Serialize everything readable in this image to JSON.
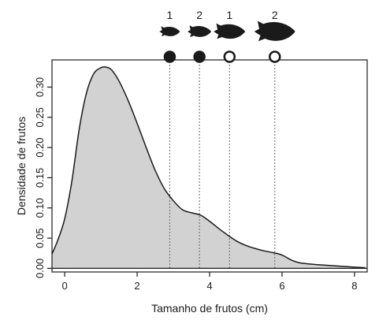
{
  "chart_data": {
    "type": "area",
    "xlabel": "Tamanho de frutos (cm)",
    "ylabel": "Densidade de frutos",
    "xlim": [
      -0.35,
      8.35
    ],
    "ylim": [
      -0.006,
      0.345
    ],
    "x_ticks": [
      0,
      2,
      4,
      6,
      8
    ],
    "x_tick_labels": [
      "0",
      "2",
      "4",
      "6",
      "8"
    ],
    "y_ticks": [
      0.0,
      0.05,
      0.1,
      0.15,
      0.2,
      0.25,
      0.3
    ],
    "y_tick_labels": [
      "0.00",
      "0.05",
      "0.10",
      "0.15",
      "0.20",
      "0.25",
      "0.30"
    ],
    "grid": false,
    "fill_color": "#d2d2d2",
    "line_color": "#1a1a1a",
    "density": {
      "x": [
        -0.35,
        -0.2,
        0.0,
        0.2,
        0.4,
        0.6,
        0.8,
        1.0,
        1.15,
        1.3,
        1.5,
        1.75,
        2.0,
        2.25,
        2.5,
        2.75,
        3.0,
        3.25,
        3.5,
        3.75,
        4.0,
        4.25,
        4.5,
        4.75,
        5.0,
        5.25,
        5.5,
        5.75,
        6.0,
        6.25,
        6.5,
        7.0,
        7.5,
        8.0,
        8.3
      ],
      "y": [
        0.024,
        0.045,
        0.082,
        0.145,
        0.23,
        0.29,
        0.322,
        0.332,
        0.333,
        0.328,
        0.31,
        0.278,
        0.24,
        0.2,
        0.162,
        0.132,
        0.112,
        0.097,
        0.092,
        0.088,
        0.078,
        0.066,
        0.055,
        0.045,
        0.038,
        0.033,
        0.029,
        0.026,
        0.022,
        0.014,
        0.009,
        0.006,
        0.004,
        0.002,
        0.001
      ]
    },
    "markers": [
      {
        "x": 2.9,
        "label": "1",
        "fish_size": 1,
        "filled": true
      },
      {
        "x": 3.72,
        "label": "2",
        "fish_size": 2,
        "filled": true
      },
      {
        "x": 4.55,
        "label": "1",
        "fish_size": 3,
        "filled": false
      },
      {
        "x": 5.8,
        "label": "2",
        "fish_size": 4,
        "filled": false
      }
    ],
    "marker_icon": "fish-silhouette-icon"
  }
}
